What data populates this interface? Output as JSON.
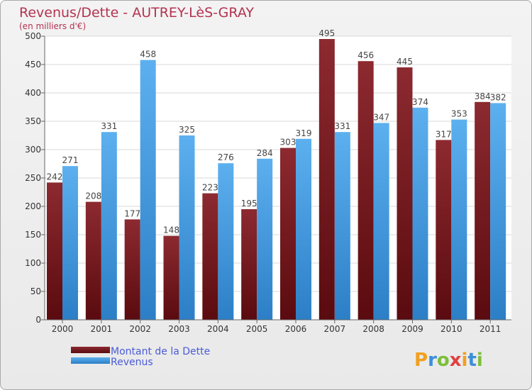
{
  "chart_data": {
    "type": "bar",
    "title": "Revenus/Dette - AUTREY-LèS-GRAY",
    "subtitle": "(en milliers d'€)",
    "categories": [
      "2000",
      "2001",
      "2002",
      "2003",
      "2004",
      "2005",
      "2006",
      "2007",
      "2008",
      "2009",
      "2010",
      "2011"
    ],
    "series": [
      {
        "name": "Montant de la Dette",
        "color": "#7a1c20",
        "values": [
          242,
          208,
          177,
          148,
          223,
          195,
          303,
          495,
          456,
          445,
          317,
          384
        ]
      },
      {
        "name": "Revenus",
        "color": "#4aa3e8",
        "values": [
          271,
          331,
          458,
          325,
          276,
          284,
          319,
          331,
          347,
          374,
          353,
          382
        ]
      }
    ],
    "ylim": [
      0,
      500
    ],
    "yticks": [
      0,
      50,
      100,
      150,
      200,
      250,
      300,
      350,
      400,
      450,
      500
    ],
    "xlabel": "",
    "ylabel": "",
    "grid": true,
    "legend_position": "bottom-left"
  },
  "logo": {
    "text": "Proxiti"
  }
}
